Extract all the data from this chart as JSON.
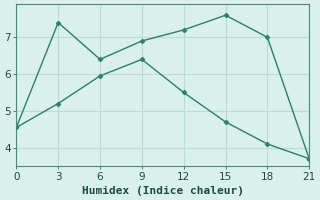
{
  "line1_x": [
    0,
    3,
    6,
    9,
    12,
    15,
    18,
    21
  ],
  "line1_y": [
    4.55,
    7.4,
    6.4,
    6.9,
    7.2,
    7.6,
    7.0,
    3.7
  ],
  "line2_x": [
    0,
    3,
    6,
    9,
    12,
    15,
    18,
    21
  ],
  "line2_y": [
    4.55,
    5.2,
    5.95,
    6.4,
    5.5,
    4.7,
    4.1,
    3.7
  ],
  "line_color": "#2e7d6e",
  "bg_color": "#daf0ec",
  "grid_color": "#b8ddd7",
  "xlabel": "Humidex (Indice chaleur)",
  "xlim": [
    0,
    21
  ],
  "ylim": [
    3.5,
    7.9
  ],
  "xticks": [
    0,
    3,
    6,
    9,
    12,
    15,
    18,
    21
  ],
  "yticks": [
    4,
    5,
    6,
    7
  ],
  "xlabel_fontsize": 8,
  "tick_fontsize": 7.5
}
